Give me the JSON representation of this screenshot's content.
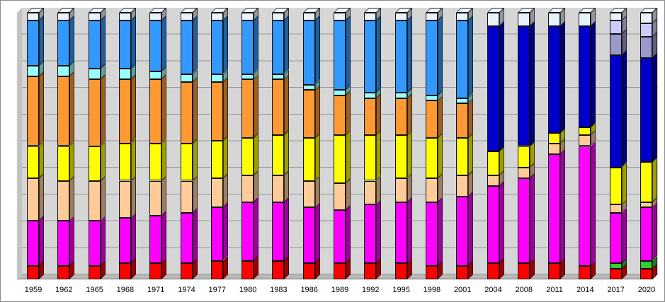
{
  "chart_data": {
    "type": "bar",
    "subtype": "100%-stacked-3d-columns",
    "title": "",
    "xlabel": "",
    "ylabel": "",
    "ylim": [
      0,
      100
    ],
    "grid": true,
    "legend_position": "none",
    "categories": [
      "1959",
      "1962",
      "1965",
      "1968",
      "1971",
      "1974",
      "1977",
      "1980",
      "1983",
      "1986",
      "1989",
      "1992",
      "1995",
      "1998",
      "2001",
      "2004",
      "2008",
      "2011",
      "2014",
      "2017",
      "2020"
    ],
    "series": [
      {
        "name": "red",
        "color": "#FF0000",
        "values": [
          5,
          5,
          5,
          6,
          6,
          6,
          7,
          7,
          7,
          6,
          6,
          6,
          6,
          5,
          5,
          6,
          6,
          6,
          5,
          4,
          4
        ]
      },
      {
        "name": "green",
        "color": "#33CC33",
        "values": [
          0,
          0,
          0,
          0,
          0,
          0,
          0,
          0,
          0,
          0,
          0,
          0,
          0,
          0,
          0,
          0,
          0,
          0,
          0,
          2,
          3
        ]
      },
      {
        "name": "magenta",
        "color": "#FF00FF",
        "values": [
          17,
          17,
          17,
          17,
          18,
          19,
          20,
          22,
          22,
          21,
          20,
          22,
          23,
          24,
          26,
          29,
          32,
          41,
          45,
          19,
          20
        ]
      },
      {
        "name": "peach",
        "color": "#FFCC99",
        "values": [
          16,
          15,
          15,
          14,
          13,
          12,
          11,
          10,
          10,
          10,
          10,
          9,
          9,
          9,
          8,
          4,
          4,
          4,
          4,
          3,
          2
        ]
      },
      {
        "name": "yellow",
        "color": "#FFFF00",
        "values": [
          12,
          13,
          13,
          14,
          14,
          14,
          14,
          14,
          15,
          16,
          18,
          17,
          16,
          15,
          14,
          9,
          8,
          4,
          3,
          14,
          15
        ]
      },
      {
        "name": "orange",
        "color": "#FF9933",
        "values": [
          26,
          26,
          25,
          24,
          24,
          23,
          22,
          22,
          21,
          18,
          15,
          14,
          14,
          14,
          13,
          0,
          0,
          0,
          0,
          0,
          0
        ]
      },
      {
        "name": "cyan",
        "color": "#99FFFF",
        "values": [
          4,
          4,
          4,
          4,
          3,
          3,
          3,
          2,
          2,
          2,
          2,
          2,
          2,
          2,
          2,
          0,
          0,
          0,
          0,
          0,
          0
        ]
      },
      {
        "name": "light-blue",
        "color": "#3399FF",
        "values": [
          17,
          17,
          18,
          18,
          19,
          20,
          20,
          20,
          20,
          24,
          26,
          27,
          27,
          28,
          29,
          0,
          0,
          0,
          0,
          0,
          0
        ]
      },
      {
        "name": "dark-blue",
        "color": "#0000CC",
        "values": [
          0,
          0,
          0,
          0,
          0,
          0,
          0,
          0,
          0,
          0,
          0,
          0,
          0,
          0,
          0,
          47,
          45,
          40,
          38,
          42,
          39
        ]
      },
      {
        "name": "grey-violet",
        "color": "#9999CC",
        "values": [
          0,
          0,
          0,
          0,
          0,
          0,
          0,
          0,
          0,
          0,
          0,
          0,
          0,
          0,
          0,
          0,
          0,
          0,
          0,
          8,
          8
        ]
      },
      {
        "name": "lavender",
        "color": "#CCCCFF",
        "values": [
          0,
          0,
          0,
          0,
          0,
          0,
          0,
          0,
          0,
          0,
          0,
          0,
          0,
          0,
          0,
          0,
          0,
          0,
          0,
          5,
          5
        ]
      },
      {
        "name": "pale-top",
        "color": "#E8F2FB",
        "values": [
          3,
          3,
          3,
          3,
          3,
          3,
          3,
          3,
          3,
          3,
          3,
          3,
          3,
          3,
          3,
          5,
          5,
          5,
          5,
          3,
          4
        ]
      }
    ],
    "layout_colors": {
      "plot_background": "#d6d6d6",
      "gridline": "#979797",
      "left_wall": "#c3c3c3",
      "floor": "#b9b9b9",
      "frame_border": "#8c8c8c",
      "axis_label": "#000000"
    }
  }
}
